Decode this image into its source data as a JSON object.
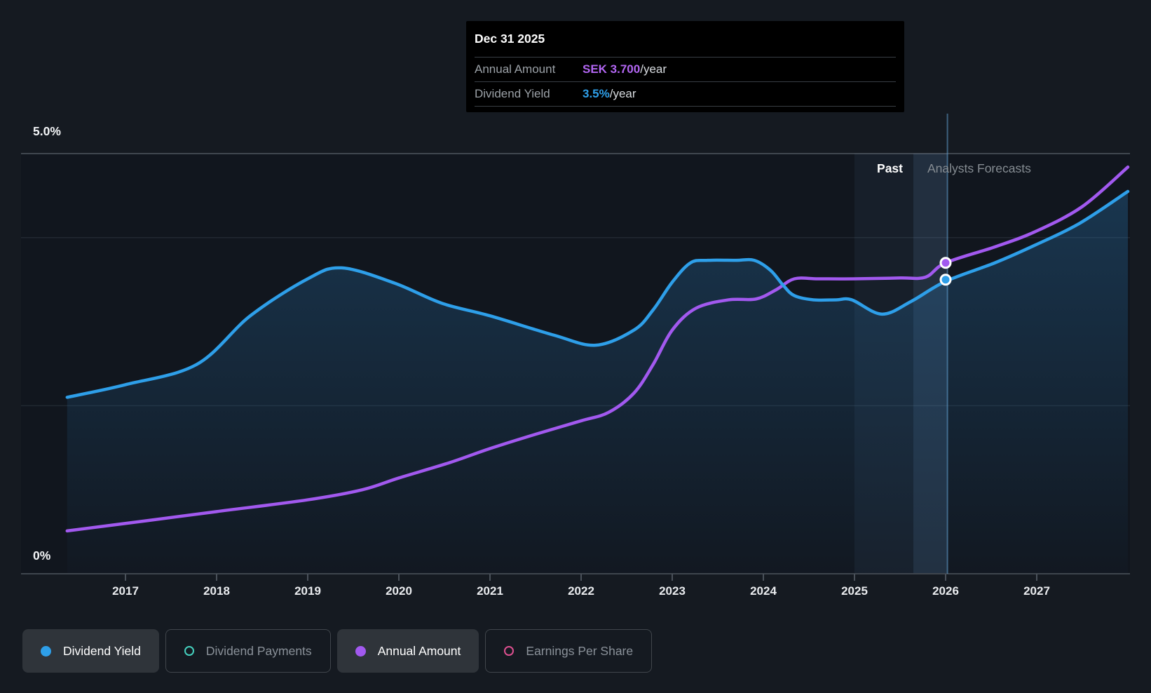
{
  "tooltip": {
    "date": "Dec 31 2025",
    "rows": [
      {
        "label": "Annual Amount",
        "value": "SEK 3.700",
        "suffix": "/year",
        "color": "#b266f2"
      },
      {
        "label": "Dividend Yield",
        "value": "3.5%",
        "suffix": "/year",
        "color": "#2e9fe9"
      }
    ]
  },
  "y_axis": {
    "top_label": "5.0%",
    "bottom_label": "0%"
  },
  "phases": {
    "past": "Past",
    "forecast": "Analysts Forecasts"
  },
  "legend": [
    {
      "label": "Dividend Yield",
      "color": "#2e9fe9",
      "active": true,
      "icon": "dot"
    },
    {
      "label": "Dividend Payments",
      "color": "#45d0be",
      "active": false,
      "icon": "ring"
    },
    {
      "label": "Annual Amount",
      "color": "#a259ef",
      "active": true,
      "icon": "dot"
    },
    {
      "label": "Earnings Per Share",
      "color": "#dd5090",
      "active": false,
      "icon": "ring"
    }
  ],
  "chart_data": {
    "type": "line",
    "title": "Dividend yield history and forecast",
    "x_ticks": [
      2017,
      2018,
      2019,
      2020,
      2021,
      2022,
      2023,
      2024,
      2025,
      2026,
      2027
    ],
    "xlim": [
      2015.85,
      2028.01
    ],
    "ylim": [
      0,
      5
    ],
    "y_unit": "%",
    "y_gridline_values": [
      5,
      4,
      2
    ],
    "grid": true,
    "legend_position": "bottom",
    "forecast_band": {
      "start": 2025.0,
      "bright_start": 2025.646,
      "end": 2026.02
    },
    "crosshair_x": 2026.02,
    "series": [
      {
        "name": "Dividend Yield",
        "unit": "%",
        "color": "#2e9fe9",
        "area": true,
        "points": [
          [
            2016.36,
            2.1
          ],
          [
            2017.0,
            2.25
          ],
          [
            2017.78,
            2.49
          ],
          [
            2018.37,
            3.07
          ],
          [
            2019.0,
            3.51
          ],
          [
            2019.37,
            3.64
          ],
          [
            2019.95,
            3.46
          ],
          [
            2020.47,
            3.22
          ],
          [
            2021.0,
            3.07
          ],
          [
            2021.7,
            2.84
          ],
          [
            2022.16,
            2.72
          ],
          [
            2022.58,
            2.9
          ],
          [
            2022.79,
            3.14
          ],
          [
            2023.0,
            3.47
          ],
          [
            2023.2,
            3.7
          ],
          [
            2023.39,
            3.73
          ],
          [
            2023.7,
            3.73
          ],
          [
            2023.9,
            3.73
          ],
          [
            2024.08,
            3.61
          ],
          [
            2024.22,
            3.43
          ],
          [
            2024.34,
            3.31
          ],
          [
            2024.55,
            3.26
          ],
          [
            2024.8,
            3.26
          ],
          [
            2024.97,
            3.26
          ],
          [
            2025.3,
            3.09
          ],
          [
            2025.62,
            3.24
          ],
          [
            2026.0,
            3.48
          ],
          [
            2026.54,
            3.7
          ],
          [
            2026.98,
            3.91
          ],
          [
            2027.47,
            4.17
          ],
          [
            2028.0,
            4.55
          ]
        ]
      },
      {
        "name": "Annual Amount",
        "unit": "SEK",
        "color": "#a259ef",
        "area": false,
        "points": [
          [
            2016.36,
            0.51
          ],
          [
            2017.15,
            0.62
          ],
          [
            2018.0,
            0.74
          ],
          [
            2019.0,
            0.88
          ],
          [
            2019.6,
            1.0
          ],
          [
            2020.0,
            1.14
          ],
          [
            2020.55,
            1.32
          ],
          [
            2021.0,
            1.49
          ],
          [
            2021.5,
            1.66
          ],
          [
            2022.0,
            1.82
          ],
          [
            2022.3,
            1.92
          ],
          [
            2022.58,
            2.15
          ],
          [
            2022.79,
            2.49
          ],
          [
            2023.0,
            2.9
          ],
          [
            2023.26,
            3.16
          ],
          [
            2023.62,
            3.26
          ],
          [
            2023.92,
            3.27
          ],
          [
            2024.14,
            3.38
          ],
          [
            2024.34,
            3.51
          ],
          [
            2024.6,
            3.51
          ],
          [
            2025.0,
            3.51
          ],
          [
            2025.5,
            3.52
          ],
          [
            2025.78,
            3.53
          ],
          [
            2026.0,
            3.7
          ],
          [
            2026.54,
            3.89
          ],
          [
            2026.98,
            4.07
          ],
          [
            2027.5,
            4.37
          ],
          [
            2028.0,
            4.84
          ]
        ]
      }
    ],
    "markers": [
      {
        "series": "Annual Amount",
        "x": 2026.0,
        "y": 3.7,
        "color": "#a259ef"
      },
      {
        "series": "Dividend Yield",
        "x": 2026.0,
        "y": 3.5,
        "color": "#2e9fe9"
      }
    ]
  }
}
